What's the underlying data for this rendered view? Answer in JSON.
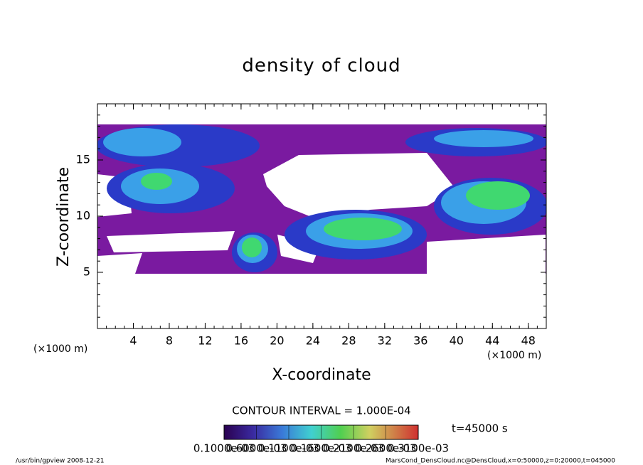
{
  "chart_data": {
    "type": "contour",
    "title": "density of cloud",
    "x_label": "X-coordinate",
    "y_label": "Z-coordinate",
    "x_unit_left": "(×1000 m)",
    "x_unit_right": "(×1000 m)",
    "xlim": [
      0,
      50
    ],
    "ylim": [
      0,
      20
    ],
    "xticks": [
      4,
      8,
      12,
      16,
      20,
      24,
      28,
      32,
      36,
      40,
      44,
      48
    ],
    "yticks": [
      5,
      10,
      15
    ],
    "contour_interval": "CONTOUR INTERVAL = 1.000E-04",
    "time": "t=45000 s",
    "colorbar_labels": [
      "0.1000e-03",
      "0.6000e-03",
      "0.1100e-03",
      "0.1600e-03",
      "0.2100e-03",
      "0.2600e-03",
      "0.3100e-03"
    ]
  },
  "footer": {
    "left": "/usr/bin/gpview   2008-12-21",
    "right": "MarsCond_DensCloud.nc@DensCloud,x=0:50000,z=0:20000,t=045000"
  }
}
